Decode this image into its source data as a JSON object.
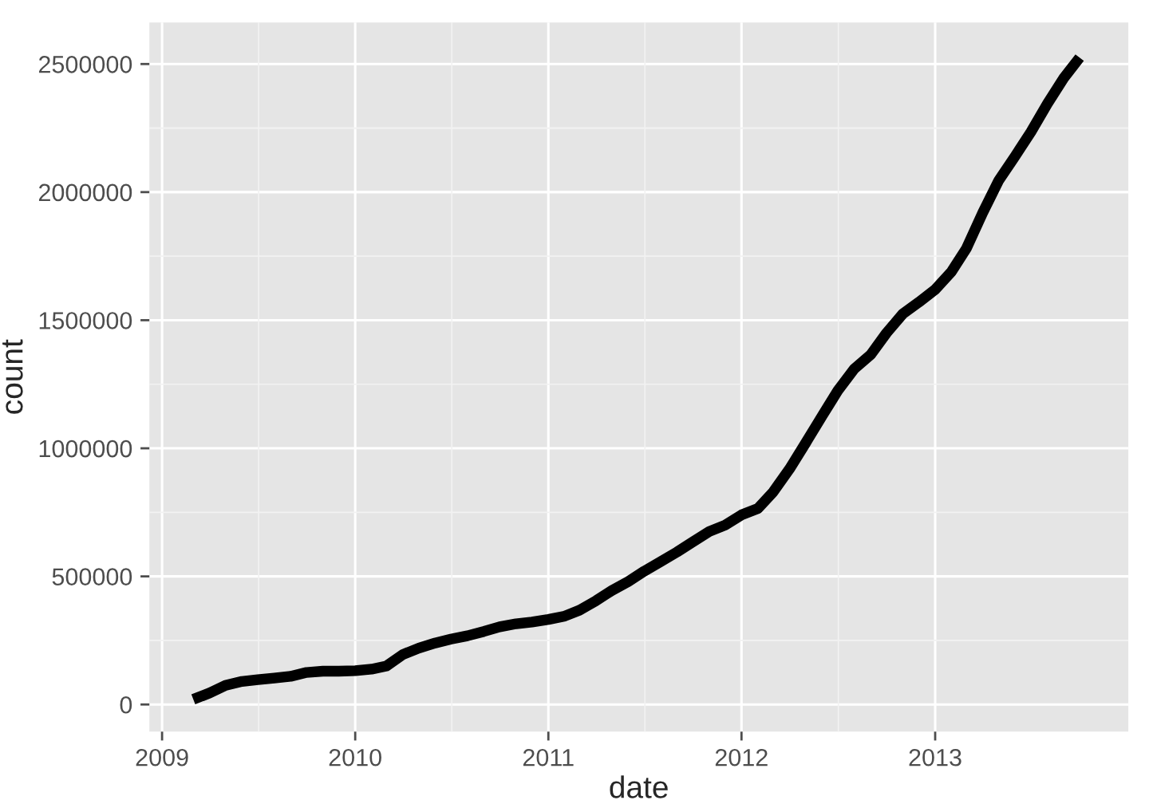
{
  "chart_data": {
    "type": "line",
    "xlabel": "date",
    "ylabel": "count",
    "x": [
      "2009-03",
      "2009-04",
      "2009-05",
      "2009-06",
      "2009-07",
      "2009-08",
      "2009-09",
      "2009-10",
      "2009-11",
      "2009-12",
      "2010-01",
      "2010-02",
      "2010-03",
      "2010-04",
      "2010-05",
      "2010-06",
      "2010-07",
      "2010-08",
      "2010-09",
      "2010-10",
      "2010-11",
      "2010-12",
      "2011-01",
      "2011-02",
      "2011-03",
      "2011-04",
      "2011-05",
      "2011-06",
      "2011-07",
      "2011-08",
      "2011-09",
      "2011-10",
      "2011-11",
      "2011-12",
      "2012-01",
      "2012-02",
      "2012-03",
      "2012-04",
      "2012-05",
      "2012-06",
      "2012-07",
      "2012-08",
      "2012-09",
      "2012-10",
      "2012-11",
      "2012-12",
      "2013-01",
      "2013-02",
      "2013-03",
      "2013-04",
      "2013-05",
      "2013-06",
      "2013-07",
      "2013-08",
      "2013-09",
      "2013-10"
    ],
    "series": [
      {
        "color": "#000000",
        "values": [
          20000,
          45000,
          75000,
          90000,
          97000,
          103000,
          110000,
          125000,
          130000,
          130000,
          132000,
          138000,
          150000,
          195000,
          220000,
          240000,
          255000,
          268000,
          285000,
          303000,
          315000,
          322000,
          332000,
          345000,
          368000,
          405000,
          445000,
          480000,
          520000,
          557000,
          595000,
          635000,
          675000,
          700000,
          740000,
          765000,
          830000,
          920000,
          1020000,
          1125000,
          1225000,
          1310000,
          1365000,
          1450000,
          1525000,
          1570000,
          1620000,
          1690000,
          1780000,
          1920000,
          2045000,
          2140000,
          2235000,
          2345000,
          2445000,
          2525000
        ]
      }
    ],
    "xlim": [
      "2008-12-08",
      "2014-01-01"
    ],
    "ylim": [
      -106000,
      2662000
    ],
    "xticks": [
      {
        "value": "2009-01-01",
        "label": "2009"
      },
      {
        "value": "2010-01-01",
        "label": "2010"
      },
      {
        "value": "2011-01-01",
        "label": "2011"
      },
      {
        "value": "2012-01-01",
        "label": "2012"
      },
      {
        "value": "2013-01-01",
        "label": "2013"
      }
    ],
    "yticks": [
      0,
      500000,
      1000000,
      1500000,
      2000000,
      2500000
    ],
    "grid": true,
    "line_style": "solid",
    "marker": "none"
  }
}
